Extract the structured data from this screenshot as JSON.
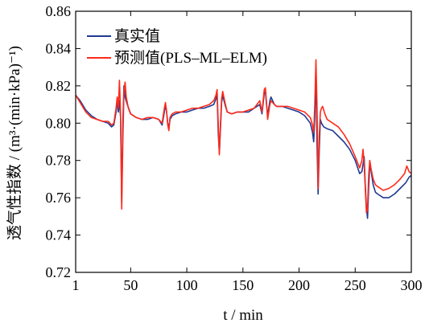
{
  "chart_data": {
    "type": "line",
    "title": "",
    "xlabel": "t / min",
    "ylabel": "透气性指数 / (m³·(min·kPa)⁻¹)",
    "xlim": [
      1,
      300
    ],
    "ylim": [
      0.72,
      0.86
    ],
    "xticks": [
      1,
      50,
      100,
      150,
      200,
      250,
      300
    ],
    "xtick_labels": [
      "1",
      "50",
      "100",
      "150",
      "200",
      "250",
      "300"
    ],
    "yticks": [
      0.72,
      0.74,
      0.76,
      0.78,
      0.8,
      0.82,
      0.84,
      0.86
    ],
    "ytick_labels": [
      "0.72",
      "0.74",
      "0.76",
      "0.78",
      "0.80",
      "0.82",
      "0.84",
      "0.86"
    ],
    "grid": false,
    "legend_position": "top-left",
    "series": [
      {
        "name": "真实值",
        "color": "#1f3a93",
        "points": [
          [
            1,
            0.815
          ],
          [
            5,
            0.812
          ],
          [
            10,
            0.807
          ],
          [
            15,
            0.804
          ],
          [
            20,
            0.802
          ],
          [
            25,
            0.801
          ],
          [
            30,
            0.8
          ],
          [
            33,
            0.798
          ],
          [
            35,
            0.799
          ],
          [
            37,
            0.806
          ],
          [
            38,
            0.812
          ],
          [
            39,
            0.806
          ],
          [
            40,
            0.812
          ],
          [
            41,
            0.803
          ],
          [
            42,
            0.757
          ],
          [
            43,
            0.8
          ],
          [
            44,
            0.82
          ],
          [
            45,
            0.814
          ],
          [
            47,
            0.81
          ],
          [
            50,
            0.805
          ],
          [
            55,
            0.803
          ],
          [
            60,
            0.802
          ],
          [
            65,
            0.802
          ],
          [
            70,
            0.803
          ],
          [
            75,
            0.802
          ],
          [
            78,
            0.799
          ],
          [
            80,
            0.806
          ],
          [
            81,
            0.81
          ],
          [
            82,
            0.806
          ],
          [
            83,
            0.8
          ],
          [
            84,
            0.797
          ],
          [
            85,
            0.802
          ],
          [
            87,
            0.804
          ],
          [
            90,
            0.805
          ],
          [
            95,
            0.806
          ],
          [
            100,
            0.806
          ],
          [
            105,
            0.807
          ],
          [
            110,
            0.808
          ],
          [
            115,
            0.808
          ],
          [
            120,
            0.809
          ],
          [
            124,
            0.81
          ],
          [
            126,
            0.813
          ],
          [
            127,
            0.816
          ],
          [
            128,
            0.795
          ],
          [
            129,
            0.784
          ],
          [
            130,
            0.797
          ],
          [
            131,
            0.811
          ],
          [
            132,
            0.815
          ],
          [
            134,
            0.81
          ],
          [
            136,
            0.806
          ],
          [
            140,
            0.805
          ],
          [
            145,
            0.806
          ],
          [
            150,
            0.806
          ],
          [
            155,
            0.806
          ],
          [
            160,
            0.808
          ],
          [
            165,
            0.81
          ],
          [
            167,
            0.805
          ],
          [
            169,
            0.816
          ],
          [
            170,
            0.817
          ],
          [
            171,
            0.81
          ],
          [
            172,
            0.804
          ],
          [
            174,
            0.812
          ],
          [
            175,
            0.814
          ],
          [
            178,
            0.81
          ],
          [
            180,
            0.809
          ],
          [
            185,
            0.809
          ],
          [
            190,
            0.808
          ],
          [
            195,
            0.807
          ],
          [
            200,
            0.806
          ],
          [
            205,
            0.804
          ],
          [
            210,
            0.8
          ],
          [
            212,
            0.795
          ],
          [
            213,
            0.79
          ],
          [
            214,
            0.803
          ],
          [
            215,
            0.83
          ],
          [
            216,
            0.79
          ],
          [
            217,
            0.762
          ],
          [
            218,
            0.785
          ],
          [
            219,
            0.802
          ],
          [
            220,
            0.8
          ],
          [
            222,
            0.798
          ],
          [
            225,
            0.797
          ],
          [
            230,
            0.796
          ],
          [
            235,
            0.793
          ],
          [
            240,
            0.79
          ],
          [
            245,
            0.786
          ],
          [
            250,
            0.78
          ],
          [
            254,
            0.773
          ],
          [
            256,
            0.774
          ],
          [
            258,
            0.782
          ],
          [
            259,
            0.767
          ],
          [
            260,
            0.755
          ],
          [
            261,
            0.749
          ],
          [
            262,
            0.765
          ],
          [
            263,
            0.778
          ],
          [
            264,
            0.775
          ],
          [
            266,
            0.767
          ],
          [
            268,
            0.763
          ],
          [
            270,
            0.762
          ],
          [
            275,
            0.76
          ],
          [
            280,
            0.76
          ],
          [
            285,
            0.762
          ],
          [
            290,
            0.765
          ],
          [
            295,
            0.768
          ],
          [
            298,
            0.771
          ],
          [
            300,
            0.772
          ]
        ]
      },
      {
        "name": "预测值(PLS–ML–ELM)",
        "color": "#ff2a1a",
        "points": [
          [
            1,
            0.815
          ],
          [
            5,
            0.811
          ],
          [
            10,
            0.806
          ],
          [
            15,
            0.803
          ],
          [
            20,
            0.802
          ],
          [
            25,
            0.801
          ],
          [
            30,
            0.801
          ],
          [
            33,
            0.799
          ],
          [
            35,
            0.8
          ],
          [
            37,
            0.808
          ],
          [
            38,
            0.814
          ],
          [
            39,
            0.808
          ],
          [
            40,
            0.823
          ],
          [
            41,
            0.805
          ],
          [
            42,
            0.754
          ],
          [
            43,
            0.79
          ],
          [
            44,
            0.817
          ],
          [
            45,
            0.822
          ],
          [
            46,
            0.814
          ],
          [
            48,
            0.808
          ],
          [
            50,
            0.805
          ],
          [
            55,
            0.803
          ],
          [
            60,
            0.802
          ],
          [
            65,
            0.803
          ],
          [
            70,
            0.803
          ],
          [
            75,
            0.802
          ],
          [
            78,
            0.8
          ],
          [
            80,
            0.808
          ],
          [
            81,
            0.811
          ],
          [
            82,
            0.806
          ],
          [
            83,
            0.799
          ],
          [
            84,
            0.796
          ],
          [
            85,
            0.803
          ],
          [
            87,
            0.805
          ],
          [
            90,
            0.806
          ],
          [
            95,
            0.806
          ],
          [
            100,
            0.807
          ],
          [
            105,
            0.808
          ],
          [
            110,
            0.808
          ],
          [
            115,
            0.809
          ],
          [
            120,
            0.81
          ],
          [
            124,
            0.812
          ],
          [
            126,
            0.815
          ],
          [
            127,
            0.818
          ],
          [
            128,
            0.8
          ],
          [
            129,
            0.783
          ],
          [
            130,
            0.8
          ],
          [
            131,
            0.813
          ],
          [
            132,
            0.817
          ],
          [
            134,
            0.811
          ],
          [
            136,
            0.806
          ],
          [
            140,
            0.805
          ],
          [
            145,
            0.806
          ],
          [
            150,
            0.806
          ],
          [
            155,
            0.807
          ],
          [
            160,
            0.808
          ],
          [
            165,
            0.812
          ],
          [
            167,
            0.806
          ],
          [
            169,
            0.818
          ],
          [
            170,
            0.819
          ],
          [
            171,
            0.811
          ],
          [
            172,
            0.802
          ],
          [
            174,
            0.81
          ],
          [
            175,
            0.812
          ],
          [
            178,
            0.81
          ],
          [
            180,
            0.809
          ],
          [
            185,
            0.809
          ],
          [
            190,
            0.809
          ],
          [
            195,
            0.808
          ],
          [
            200,
            0.807
          ],
          [
            205,
            0.806
          ],
          [
            210,
            0.803
          ],
          [
            212,
            0.799
          ],
          [
            213,
            0.795
          ],
          [
            214,
            0.81
          ],
          [
            215,
            0.834
          ],
          [
            216,
            0.81
          ],
          [
            217,
            0.765
          ],
          [
            218,
            0.793
          ],
          [
            219,
            0.806
          ],
          [
            220,
            0.808
          ],
          [
            221,
            0.809
          ],
          [
            223,
            0.805
          ],
          [
            225,
            0.802
          ],
          [
            230,
            0.8
          ],
          [
            235,
            0.798
          ],
          [
            240,
            0.794
          ],
          [
            245,
            0.789
          ],
          [
            250,
            0.782
          ],
          [
            254,
            0.776
          ],
          [
            256,
            0.78
          ],
          [
            257,
            0.786
          ],
          [
            258,
            0.778
          ],
          [
            259,
            0.765
          ],
          [
            260,
            0.752
          ],
          [
            261,
            0.754
          ],
          [
            262,
            0.772
          ],
          [
            263,
            0.78
          ],
          [
            264,
            0.776
          ],
          [
            266,
            0.77
          ],
          [
            268,
            0.767
          ],
          [
            270,
            0.766
          ],
          [
            275,
            0.764
          ],
          [
            280,
            0.765
          ],
          [
            285,
            0.767
          ],
          [
            290,
            0.77
          ],
          [
            294,
            0.773
          ],
          [
            296,
            0.777
          ],
          [
            298,
            0.774
          ],
          [
            300,
            0.773
          ]
        ]
      }
    ]
  }
}
